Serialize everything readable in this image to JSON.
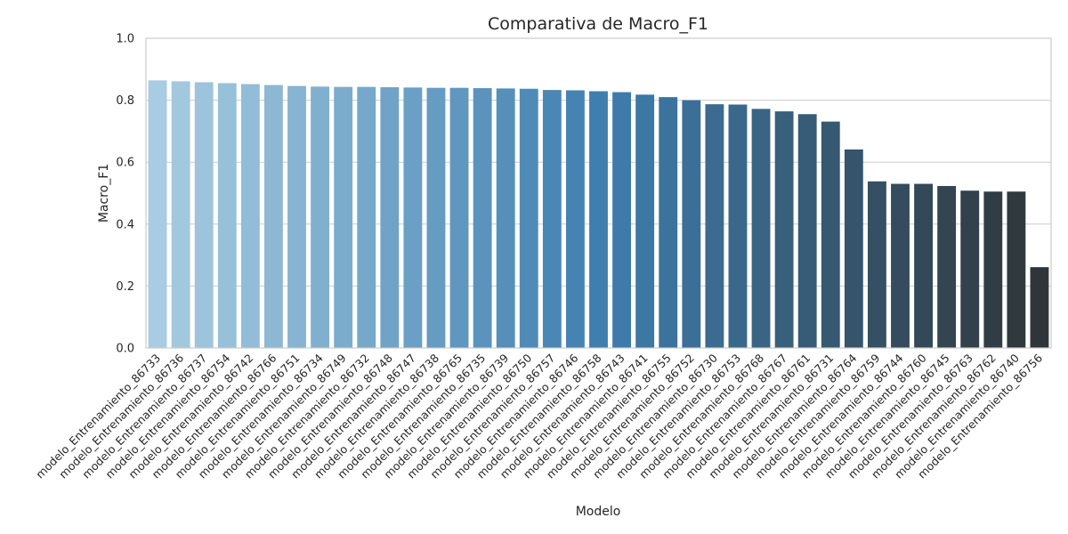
{
  "chart_data": {
    "type": "bar",
    "title": "Comparativa de Macro_F1",
    "xlabel": "Modelo",
    "ylabel": "Macro_F1",
    "ylim": [
      0,
      1.0
    ],
    "yticks": [
      "0.0",
      "0.2",
      "0.4",
      "0.6",
      "0.8",
      "1.0"
    ],
    "grid": "horizontal",
    "palette": [
      "#a8cce1",
      "#2f3538"
    ],
    "categories": [
      "modelo_Entrenamiento_86733",
      "modelo_Entrenamiento_86736",
      "modelo_Entrenamiento_86737",
      "modelo_Entrenamiento_86754",
      "modelo_Entrenamiento_86742",
      "modelo_Entrenamiento_86766",
      "modelo_Entrenamiento_86751",
      "modelo_Entrenamiento_86734",
      "modelo_Entrenamiento_86749",
      "modelo_Entrenamiento_86732",
      "modelo_Entrenamiento_86748",
      "modelo_Entrenamiento_86747",
      "modelo_Entrenamiento_86738",
      "modelo_Entrenamiento_86765",
      "modelo_Entrenamiento_86735",
      "modelo_Entrenamiento_86739",
      "modelo_Entrenamiento_86750",
      "modelo_Entrenamiento_86757",
      "modelo_Entrenamiento_86746",
      "modelo_Entrenamiento_86758",
      "modelo_Entrenamiento_86743",
      "modelo_Entrenamiento_86741",
      "modelo_Entrenamiento_86755",
      "modelo_Entrenamiento_86752",
      "modelo_Entrenamiento_86730",
      "modelo_Entrenamiento_86753",
      "modelo_Entrenamiento_86768",
      "modelo_Entrenamiento_86767",
      "modelo_Entrenamiento_86761",
      "modelo_Entrenamiento_86731",
      "modelo_Entrenamiento_86764",
      "modelo_Entrenamiento_86759",
      "modelo_Entrenamiento_86744",
      "modelo_Entrenamiento_86760",
      "modelo_Entrenamiento_86745",
      "modelo_Entrenamiento_86763",
      "modelo_Entrenamiento_86762",
      "modelo_Entrenamiento_86740",
      "modelo_Entrenamiento_86756"
    ],
    "values": [
      0.864,
      0.861,
      0.858,
      0.855,
      0.852,
      0.849,
      0.846,
      0.844,
      0.843,
      0.843,
      0.842,
      0.841,
      0.84,
      0.84,
      0.839,
      0.838,
      0.837,
      0.833,
      0.832,
      0.829,
      0.826,
      0.818,
      0.81,
      0.8,
      0.787,
      0.786,
      0.772,
      0.764,
      0.755,
      0.731,
      0.641,
      0.538,
      0.53,
      0.53,
      0.523,
      0.508,
      0.505,
      0.505,
      0.261
    ]
  }
}
